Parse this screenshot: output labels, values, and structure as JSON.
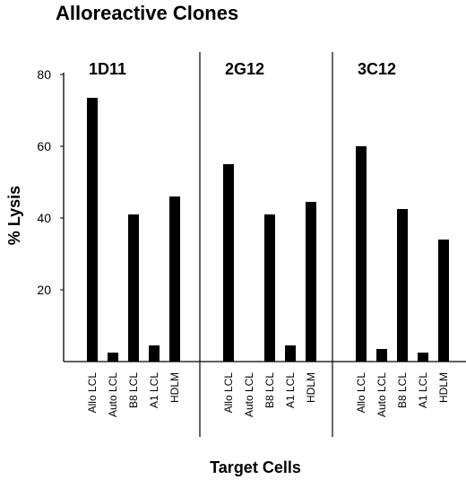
{
  "chart_data": {
    "type": "bar",
    "title": "Alloreactive Clones",
    "xlabel": "Target Cells",
    "ylabel": "% Lysis",
    "ylim": [
      0,
      80
    ],
    "yticks": [
      20,
      40,
      60,
      80
    ],
    "grid": false,
    "categories": [
      "Allo LCL",
      "Auto LCL",
      "B8 LCL",
      "A1 LCL",
      "HDLM"
    ],
    "panels": [
      {
        "name": "1D11",
        "values": [
          73.5,
          2.5,
          41,
          4.5,
          46
        ]
      },
      {
        "name": "2G12",
        "values": [
          55,
          0,
          41,
          4.5,
          44.5
        ]
      },
      {
        "name": "3C12",
        "values": [
          60,
          3.5,
          42.5,
          2.5,
          34
        ]
      }
    ],
    "colors": {
      "bar": "#000000",
      "axis": "#000000"
    }
  }
}
